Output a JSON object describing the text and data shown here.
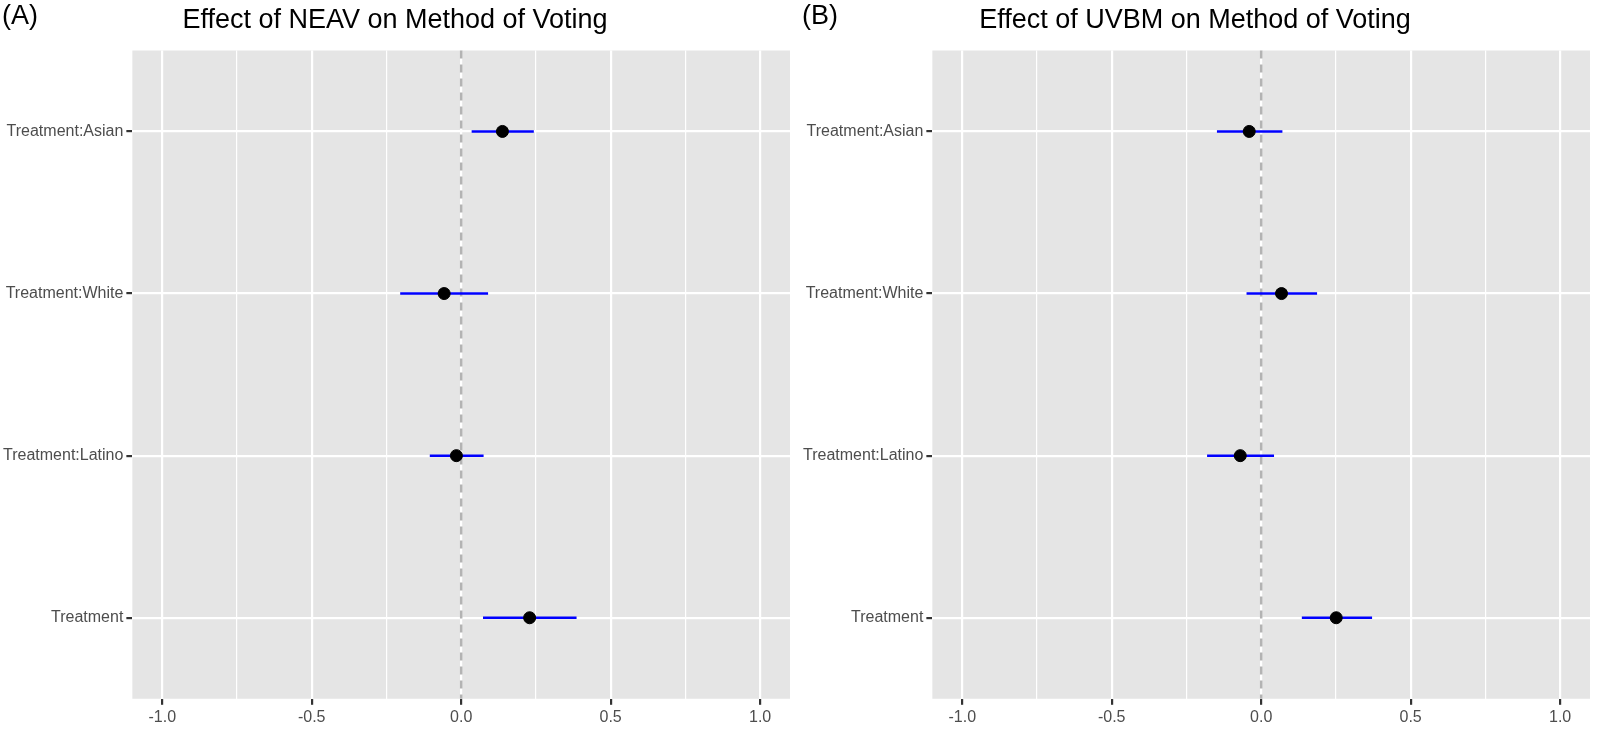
{
  "chart_data": [
    {
      "type": "scatter",
      "title": "Effect of NEAV on Method of Voting",
      "annotations": [
        "(A)"
      ],
      "orientation": "horizontal",
      "categories": [
        "Treatment:Asian",
        "Treatment:White",
        "Treatment:Latino",
        "Treatment"
      ],
      "series": [
        {
          "color": "#000000",
          "values": [
            0.138,
            -0.057,
            -0.016,
            0.229
          ],
          "errors": [
            [
              0.035,
              0.243
            ],
            [
              -0.204,
              0.09
            ],
            [
              -0.105,
              0.075
            ],
            [
              0.073,
              0.386
            ]
          ]
        }
      ],
      "xlim": [
        -1.1,
        1.1
      ],
      "xticks": [
        {
          "value": -1,
          "label": "-1.0"
        },
        {
          "value": -0.75,
          "label": null
        },
        {
          "value": -0.5,
          "label": "-0.5"
        },
        {
          "value": -0.25,
          "label": null
        },
        {
          "value": 0,
          "label": "0.0"
        },
        {
          "value": 0.25,
          "label": null
        },
        {
          "value": 0.5,
          "label": "0.5"
        },
        {
          "value": 0.75,
          "label": null
        },
        {
          "value": 1,
          "label": "1.0"
        }
      ],
      "ref_lines": [
        {
          "axis": "x",
          "value": 0,
          "color": "#b3b3b3",
          "line_style": "dashed"
        }
      ],
      "grid": true,
      "marker": "circle",
      "legend": false
    },
    {
      "type": "scatter",
      "title": "Effect of UVBM on Method of Voting",
      "annotations": [
        "(B)"
      ],
      "orientation": "horizontal",
      "categories": [
        "Treatment:Asian",
        "Treatment:White",
        "Treatment:Latino",
        "Treatment"
      ],
      "series": [
        {
          "color": "#000000",
          "values": [
            -0.04,
            0.068,
            -0.07,
            0.251
          ],
          "errors": [
            [
              -0.148,
              0.071
            ],
            [
              -0.049,
              0.187
            ],
            [
              -0.181,
              0.043
            ],
            [
              0.136,
              0.371
            ]
          ]
        }
      ],
      "xlim": [
        -1.1,
        1.1
      ],
      "xticks": [
        {
          "value": -1,
          "label": "-1.0"
        },
        {
          "value": -0.75,
          "label": null
        },
        {
          "value": -0.5,
          "label": "-0.5"
        },
        {
          "value": -0.25,
          "label": null
        },
        {
          "value": 0,
          "label": "0.0"
        },
        {
          "value": 0.25,
          "label": null
        },
        {
          "value": 0.5,
          "label": "0.5"
        },
        {
          "value": 0.75,
          "label": null
        },
        {
          "value": 1,
          "label": "1.0"
        }
      ],
      "ref_lines": [
        {
          "axis": "x",
          "value": 0,
          "color": "#b3b3b3",
          "line_style": "dashed"
        }
      ],
      "grid": true,
      "marker": "circle",
      "legend": false
    }
  ]
}
